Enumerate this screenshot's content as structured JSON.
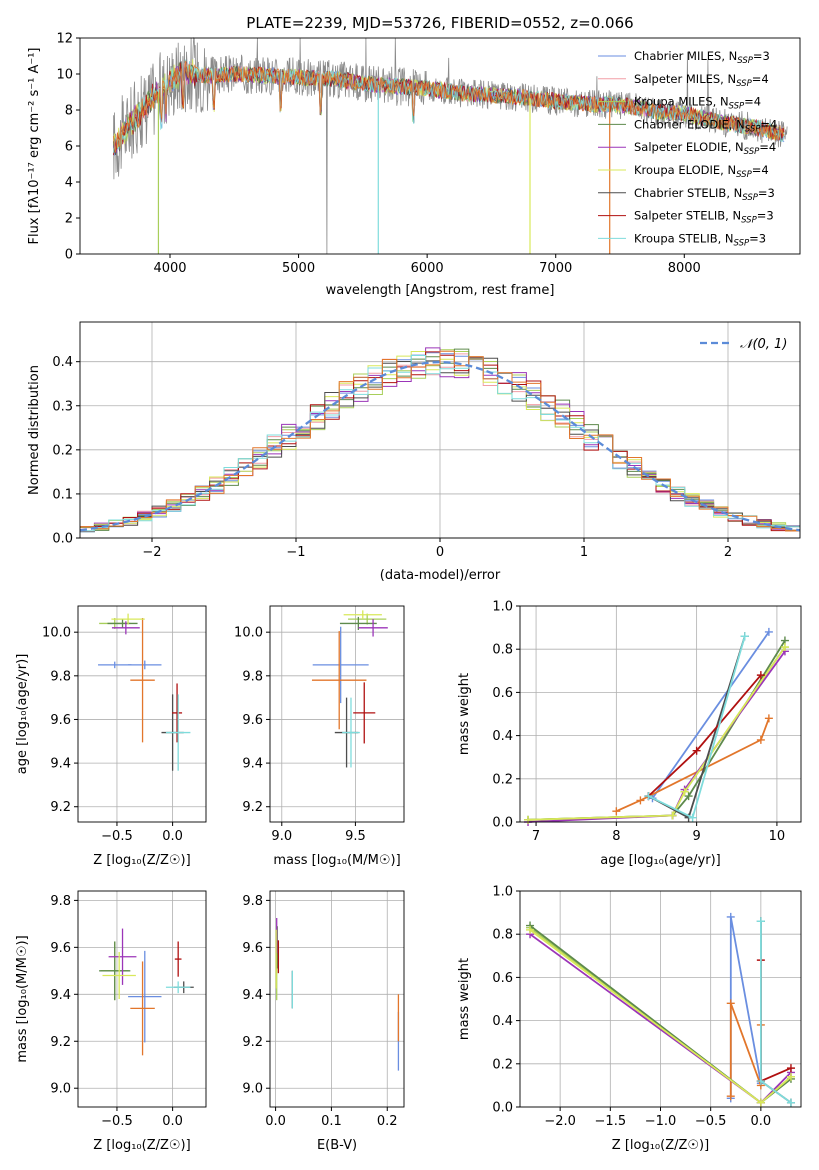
{
  "colors": [
    "#6a8ee0",
    "#f29ea6",
    "#a8cf5a",
    "#5e8a4c",
    "#9b35b8",
    "#d8e85a",
    "#4d4d4d",
    "#b01010",
    "#7fdcdc"
  ],
  "accent_orange": "#e2762b",
  "chart_data": [
    {
      "id": "spectrum",
      "type": "line",
      "title": "PLATE=2239, MJD=53726, FIBERID=0552, z=0.066",
      "xlabel": "wavelength [Angstrom, rest frame]",
      "ylabel": "Flux [fλ10⁻¹⁷ erg cm⁻² s⁻¹ A⁻¹]",
      "xlim": [
        3300,
        8900
      ],
      "ylim": [
        0,
        12
      ],
      "xticks": [
        "4000",
        "5000",
        "6000",
        "7000",
        "8000"
      ],
      "yticks": [
        "0",
        "2",
        "4",
        "6",
        "8",
        "10",
        "12"
      ],
      "legend_placement": "top-right",
      "series": [
        {
          "name": "Chabrier MILES, N",
          "sub": "SSP",
          "suffix": "=3"
        },
        {
          "name": "Salpeter MILES, N",
          "sub": "SSP",
          "suffix": "=4"
        },
        {
          "name": "Kroupa MILES, N",
          "sub": "SSP",
          "suffix": "=4"
        },
        {
          "name": "Chabrier ELODIE, N",
          "sub": "SSP",
          "suffix": "=4"
        },
        {
          "name": "Salpeter ELODIE, N",
          "sub": "SSP",
          "suffix": "=4"
        },
        {
          "name": "Kroupa ELODIE, N",
          "sub": "SSP",
          "suffix": "=4"
        },
        {
          "name": "Chabrier STELIB, N",
          "sub": "SSP",
          "suffix": "=3"
        },
        {
          "name": "Salpeter STELIB, N",
          "sub": "SSP",
          "suffix": "=3"
        },
        {
          "name": "Kroupa STELIB, N",
          "sub": "SSP",
          "suffix": "=3"
        }
      ],
      "continuum": {
        "x": [
          3560,
          3700,
          3800,
          3900,
          4000,
          4100,
          4300,
          4500,
          4800,
          5000,
          5300,
          5600,
          6000,
          6300,
          6600,
          7000,
          7300,
          7500,
          7800,
          8000,
          8300,
          8500,
          8800
        ],
        "y": [
          6.0,
          7.3,
          8.1,
          8.9,
          9.6,
          10.1,
          9.9,
          10.0,
          9.9,
          9.8,
          9.7,
          9.4,
          9.2,
          8.9,
          8.8,
          8.5,
          8.3,
          8.3,
          7.9,
          7.8,
          7.3,
          7.1,
          6.6
        ]
      }
    },
    {
      "id": "residuals",
      "type": "histogram",
      "xlabel": "(data-model)/error",
      "ylabel": "Normed distribution",
      "xlim": [
        -2.5,
        2.5
      ],
      "ylim": [
        0,
        0.49
      ],
      "xticks": [
        "−2",
        "−1",
        "0",
        "1",
        "2"
      ],
      "yticks": [
        "0.0",
        "0.1",
        "0.2",
        "0.3",
        "0.4"
      ],
      "legend": "𝒩(0, 1)",
      "legend_placement": "top-right",
      "bin_width": 0.1
    },
    {
      "id": "age-Z",
      "type": "scatter",
      "xlabel": "Z [log₁₀(Z/Z☉)]",
      "ylabel": "age [log₁₀(age/yr)]",
      "xlim": [
        -0.85,
        0.3
      ],
      "ylim": [
        9.13,
        10.12
      ],
      "xticks": [
        "−0.5",
        "0.0"
      ],
      "yticks": [
        "9.2",
        "9.4",
        "9.6",
        "9.8",
        "10.0"
      ],
      "points": [
        {
          "s": 0,
          "x": -0.52,
          "y": 9.85,
          "dx": 0.3,
          "dy": 0.03
        },
        {
          "s": 0,
          "x": -0.25,
          "y": 9.85,
          "dx": 0.3,
          "dy": 0.04
        },
        {
          "s": "o",
          "x": -0.27,
          "y": 9.78,
          "dx": 0.22,
          "dy": 0.57
        },
        {
          "s": 2,
          "x": -0.52,
          "y": 10.04,
          "dx": 0.28,
          "dy": 0.05
        },
        {
          "s": 3,
          "x": -0.45,
          "y": 10.04,
          "dx": 0.27,
          "dy": 0.04
        },
        {
          "s": 4,
          "x": -0.42,
          "y": 10.02,
          "dx": 0.25,
          "dy": 0.06
        },
        {
          "s": 5,
          "x": -0.4,
          "y": 10.06,
          "dx": 0.3,
          "dy": 0.05
        },
        {
          "s": 6,
          "x": 0.0,
          "y": 9.54,
          "dx": 0.2,
          "dy": 0.35
        },
        {
          "s": 7,
          "x": 0.04,
          "y": 9.63,
          "dx": 0.09,
          "dy": 0.27
        },
        {
          "s": 8,
          "x": 0.05,
          "y": 9.54,
          "dx": 0.22,
          "dy": 0.35
        }
      ]
    },
    {
      "id": "age-mass",
      "type": "scatter",
      "xlabel": "mass [log₁₀(M/M☉)]",
      "ylabel": "",
      "xlim": [
        8.92,
        9.83
      ],
      "ylim": [
        9.13,
        10.12
      ],
      "xticks": [
        "9.0",
        "9.5"
      ],
      "yticks": [
        "9.2",
        "9.4",
        "9.6",
        "9.8",
        "10.0"
      ],
      "points": [
        {
          "s": 0,
          "x": 9.4,
          "y": 9.85,
          "dx": 0.38,
          "dy": 0.35
        },
        {
          "s": "o",
          "x": 9.39,
          "y": 9.78,
          "dx": 0.37,
          "dy": 0.45
        },
        {
          "s": 2,
          "x": 9.58,
          "y": 10.06,
          "dx": 0.26,
          "dy": 0.05
        },
        {
          "s": 3,
          "x": 9.52,
          "y": 10.04,
          "dx": 0.25,
          "dy": 0.06
        },
        {
          "s": 4,
          "x": 9.62,
          "y": 10.02,
          "dx": 0.2,
          "dy": 0.08
        },
        {
          "s": 5,
          "x": 9.55,
          "y": 10.08,
          "dx": 0.26,
          "dy": 0.04
        },
        {
          "s": 6,
          "x": 9.44,
          "y": 9.54,
          "dx": 0.16,
          "dy": 0.32
        },
        {
          "s": 7,
          "x": 9.56,
          "y": 9.63,
          "dx": 0.15,
          "dy": 0.28
        },
        {
          "s": 8,
          "x": 9.47,
          "y": 9.54,
          "dx": 0.12,
          "dy": 0.32
        }
      ]
    },
    {
      "id": "weight-age",
      "type": "line",
      "xlabel": "age [log₁₀(age/yr)]",
      "ylabel": "mass weight",
      "xlim": [
        6.8,
        10.3
      ],
      "ylim": [
        0,
        1.0
      ],
      "xticks": [
        "7",
        "8",
        "9",
        "10"
      ],
      "yticks": [
        "0.0",
        "0.2",
        "0.4",
        "0.6",
        "0.8",
        "1.0"
      ],
      "series": [
        {
          "s": 0,
          "x": [
            8.45,
            9.9
          ],
          "y": [
            0.11,
            0.88
          ]
        },
        {
          "s": "o",
          "x": [
            8.0,
            8.3,
            9.8,
            9.9
          ],
          "y": [
            0.05,
            0.1,
            0.38,
            0.48
          ]
        },
        {
          "s": 2,
          "x": [
            6.9,
            8.7,
            8.85,
            10.1
          ],
          "y": [
            0.01,
            0.03,
            0.14,
            0.81
          ]
        },
        {
          "s": 3,
          "x": [
            6.9,
            8.7,
            8.9,
            10.1
          ],
          "y": [
            0.01,
            0.03,
            0.12,
            0.84
          ]
        },
        {
          "s": 4,
          "x": [
            6.9,
            8.7,
            8.85,
            10.1
          ],
          "y": [
            0.0,
            0.03,
            0.15,
            0.79
          ]
        },
        {
          "s": 5,
          "x": [
            6.9,
            8.7,
            8.85,
            10.1
          ],
          "y": [
            0.01,
            0.03,
            0.14,
            0.81
          ]
        },
        {
          "s": 6,
          "x": [
            8.4,
            8.9,
            9.6
          ],
          "y": [
            0.12,
            0.02,
            0.86
          ]
        },
        {
          "s": 7,
          "x": [
            8.4,
            9.0,
            9.8
          ],
          "y": [
            0.12,
            0.33,
            0.68
          ]
        },
        {
          "s": 8,
          "x": [
            8.4,
            8.95,
            9.6
          ],
          "y": [
            0.12,
            0.02,
            0.86
          ]
        }
      ]
    },
    {
      "id": "mass-Z",
      "type": "scatter",
      "xlabel": "Z [log₁₀(Z/Z☉)]",
      "ylabel": "mass [log₁₀(M/M☉)]",
      "xlim": [
        -0.85,
        0.3
      ],
      "ylim": [
        8.92,
        9.84
      ],
      "xticks": [
        "−0.5",
        "0.0"
      ],
      "yticks": [
        "9.0",
        "9.2",
        "9.4",
        "9.6",
        "9.8"
      ],
      "points": [
        {
          "s": 0,
          "x": -0.25,
          "y": 9.39,
          "dx": 0.3,
          "dy": 0.39
        },
        {
          "s": "o",
          "x": -0.27,
          "y": 9.34,
          "dx": 0.22,
          "dy": 0.4
        },
        {
          "s": 2,
          "x": -0.52,
          "y": 9.5,
          "dx": 0.25,
          "dy": 0.25
        },
        {
          "s": 3,
          "x": -0.52,
          "y": 9.5,
          "dx": 0.28,
          "dy": 0.25
        },
        {
          "s": 4,
          "x": -0.45,
          "y": 9.56,
          "dx": 0.25,
          "dy": 0.24
        },
        {
          "s": 5,
          "x": -0.48,
          "y": 9.48,
          "dx": 0.3,
          "dy": 0.2
        },
        {
          "s": 6,
          "x": 0.1,
          "y": 9.43,
          "dx": 0.18,
          "dy": 0.05
        },
        {
          "s": 7,
          "x": 0.05,
          "y": 9.55,
          "dx": 0.06,
          "dy": 0.15
        },
        {
          "s": 8,
          "x": 0.05,
          "y": 9.43,
          "dx": 0.22,
          "dy": 0.05
        }
      ]
    },
    {
      "id": "mass-ebv",
      "type": "scatter",
      "xlabel": "E(B-V)",
      "ylabel": "",
      "xlim": [
        -0.01,
        0.23
      ],
      "ylim": [
        8.92,
        9.84
      ],
      "xticks": [
        "0.0",
        "0.1",
        "0.2"
      ],
      "yticks": [
        "9.0",
        "9.2",
        "9.4",
        "9.6",
        "9.8"
      ],
      "points": [
        {
          "s": 0,
          "x": 0.22,
          "y": 9.2,
          "dx": 0.0,
          "dy": 0.25
        },
        {
          "s": "o",
          "x": 0.22,
          "y": 9.3,
          "dx": 0.0,
          "dy": 0.2
        },
        {
          "s": 2,
          "x": 0.002,
          "y": 9.5,
          "dx": 0.0,
          "dy": 0.25
        },
        {
          "s": 3,
          "x": 0.003,
          "y": 9.6,
          "dx": 0.0,
          "dy": 0.18
        },
        {
          "s": 4,
          "x": 0.002,
          "y": 9.65,
          "dx": 0.0,
          "dy": 0.15
        },
        {
          "s": 5,
          "x": 0.001,
          "y": 9.55,
          "dx": 0.0,
          "dy": 0.25
        },
        {
          "s": 6,
          "x": 0.03,
          "y": 9.42,
          "dx": 0.0,
          "dy": 0.16
        },
        {
          "s": 7,
          "x": 0.005,
          "y": 9.56,
          "dx": 0.0,
          "dy": 0.14
        },
        {
          "s": 8,
          "x": 0.03,
          "y": 9.42,
          "dx": 0.0,
          "dy": 0.16
        }
      ]
    },
    {
      "id": "weight-Z",
      "type": "line",
      "xlabel": "Z [log₁₀(Z/Z☉)]",
      "ylabel": "mass weight",
      "xlim": [
        -2.4,
        0.4
      ],
      "ylim": [
        0,
        1.0
      ],
      "xticks": [
        "−2.0",
        "−1.5",
        "−1.0",
        "−0.5",
        "0.0"
      ],
      "yticks": [
        "0.0",
        "0.2",
        "0.4",
        "0.6",
        "0.8",
        "1.0"
      ],
      "series": [
        {
          "s": 0,
          "x": [
            -0.3,
            -0.3,
            0.0
          ],
          "y": [
            0.04,
            0.88,
            0.11
          ]
        },
        {
          "s": "o",
          "x": [
            -0.3,
            -0.3,
            0.0,
            0.0
          ],
          "y": [
            0.05,
            0.48,
            0.1,
            0.38
          ]
        },
        {
          "s": 2,
          "x": [
            -2.3,
            0.0,
            0.3
          ],
          "y": [
            0.83,
            0.02,
            0.14
          ]
        },
        {
          "s": 3,
          "x": [
            -2.3,
            0.0,
            0.3
          ],
          "y": [
            0.84,
            0.02,
            0.13
          ]
        },
        {
          "s": 4,
          "x": [
            -2.3,
            0.0,
            0.3
          ],
          "y": [
            0.8,
            0.02,
            0.16
          ]
        },
        {
          "s": 5,
          "x": [
            -2.3,
            0.0,
            0.3
          ],
          "y": [
            0.82,
            0.02,
            0.14
          ]
        },
        {
          "s": 6,
          "x": [
            0.0,
            0.0,
            0.3
          ],
          "y": [
            0.86,
            0.12,
            0.02
          ]
        },
        {
          "s": 7,
          "x": [
            0.0,
            0.0,
            0.3
          ],
          "y": [
            0.68,
            0.12,
            0.18
          ]
        },
        {
          "s": 8,
          "x": [
            0.0,
            0.0,
            0.3
          ],
          "y": [
            0.86,
            0.12,
            0.02
          ]
        }
      ]
    }
  ]
}
